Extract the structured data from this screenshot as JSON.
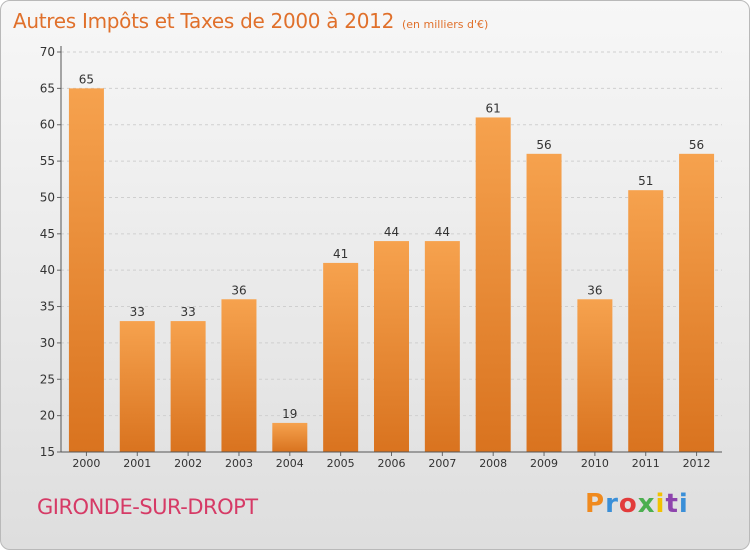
{
  "header": {
    "title": "Autres Impôts et Taxes de 2000 à 2012",
    "subtitle": "(en milliers d'€)"
  },
  "footer": {
    "town": "GIRONDE-SUR-DROPT",
    "logo_text": "Proxiti",
    "logo_colors": [
      "#f08a1e",
      "#3a8fd8",
      "#e23b3b",
      "#4caf50",
      "#f2c200",
      "#8e44ad",
      "#3a8fd8"
    ]
  },
  "colors": {
    "accent": "#e0702b",
    "bar_top": "#f6a24e",
    "bar_bottom": "#d9731f",
    "town": "#d63a66"
  },
  "chart_data": {
    "type": "bar",
    "categories": [
      "2000",
      "2001",
      "2002",
      "2003",
      "2004",
      "2005",
      "2006",
      "2007",
      "2008",
      "2009",
      "2010",
      "2011",
      "2012"
    ],
    "values": [
      65,
      33,
      33,
      36,
      19,
      41,
      44,
      44,
      61,
      56,
      36,
      51,
      56
    ],
    "data_labels": [
      "65",
      "33",
      "33",
      "36",
      "19",
      "41",
      "44",
      "44",
      "61",
      "56",
      "36",
      "51",
      "56"
    ],
    "ylim": [
      15,
      70
    ],
    "yticks": [
      15,
      20,
      25,
      30,
      35,
      40,
      45,
      50,
      55,
      60,
      65,
      70
    ],
    "grid": true,
    "title": "Autres Impôts et Taxes de 2000 à 2012",
    "xlabel": "",
    "ylabel": ""
  }
}
